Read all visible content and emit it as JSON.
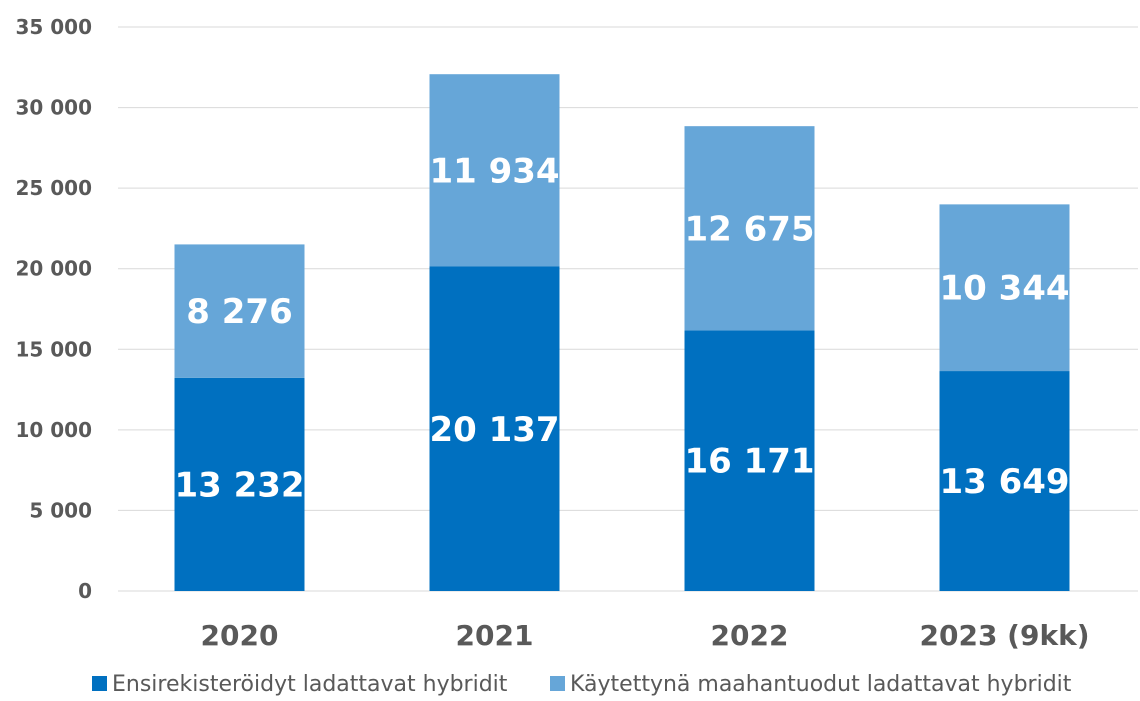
{
  "chart_data": {
    "type": "bar",
    "stacked": true,
    "categories": [
      "2020",
      "2021",
      "2022",
      "2023 (9kk)"
    ],
    "series": [
      {
        "name": "Ensirekisteröidyt ladattavat hybridit",
        "color": "#0070c0",
        "values": [
          13232,
          20137,
          16171,
          13649
        ],
        "labels": [
          "13 232",
          "20 137",
          "16 171",
          "13 649"
        ]
      },
      {
        "name": "Käytettynä maahantuodut ladattavat hybridit",
        "color": "#66a6d8",
        "values": [
          8276,
          11934,
          12675,
          10344
        ],
        "labels": [
          "8 276",
          "11 934",
          "12 675",
          "10 344"
        ]
      }
    ],
    "title": "",
    "xlabel": "",
    "ylabel": "",
    "ylim": [
      0,
      35000
    ],
    "yticks": [
      0,
      5000,
      10000,
      15000,
      20000,
      25000,
      30000,
      35000
    ],
    "ytick_labels": [
      "0",
      "5 000",
      "10 000",
      "15 000",
      "20 000",
      "25 000",
      "30 000",
      "35 000"
    ],
    "grid": true,
    "legend_position": "bottom"
  }
}
